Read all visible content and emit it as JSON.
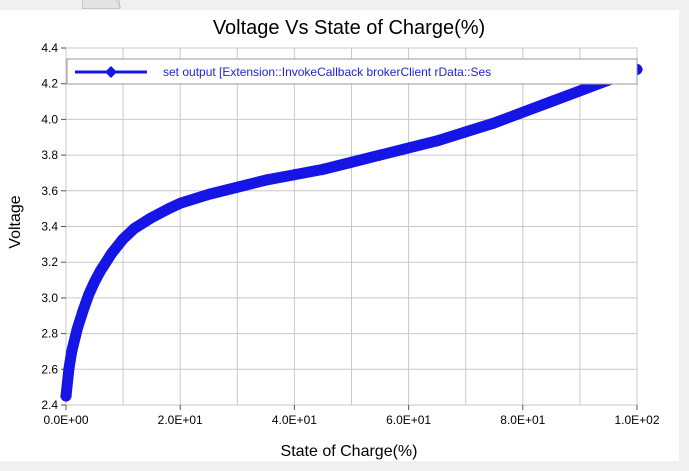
{
  "chart_data": {
    "type": "line",
    "title": "Voltage Vs State of Charge(%)",
    "xlabel": "State of Charge(%)",
    "ylabel": "Voltage",
    "xlim": [
      0,
      100
    ],
    "ylim": [
      2.4,
      4.4
    ],
    "x_ticks": [
      "0.0E+00",
      "2.0E+01",
      "4.0E+01",
      "6.0E+01",
      "8.0E+01",
      "1.0E+02"
    ],
    "y_ticks": [
      "2.4",
      "2.6",
      "2.8",
      "3.0",
      "3.2",
      "3.4",
      "3.6",
      "3.8",
      "4.0",
      "4.2",
      "4.4"
    ],
    "grid": true,
    "legend_position": "top",
    "series": [
      {
        "name": "set output [Extension::InvokeCallback brokerClient rData::Ses",
        "color": "#1515e6",
        "marker": "diamond",
        "x": [
          0,
          0.5,
          1,
          2,
          3,
          4,
          5,
          6,
          8,
          10,
          12,
          15,
          18,
          20,
          25,
          30,
          35,
          40,
          45,
          50,
          55,
          60,
          65,
          70,
          75,
          80,
          85,
          90,
          95,
          100
        ],
        "y": [
          2.45,
          2.6,
          2.7,
          2.83,
          2.93,
          3.02,
          3.09,
          3.15,
          3.25,
          3.33,
          3.39,
          3.45,
          3.5,
          3.53,
          3.58,
          3.62,
          3.66,
          3.69,
          3.72,
          3.76,
          3.8,
          3.84,
          3.88,
          3.93,
          3.98,
          4.04,
          4.1,
          4.16,
          4.22,
          4.28
        ]
      }
    ]
  }
}
